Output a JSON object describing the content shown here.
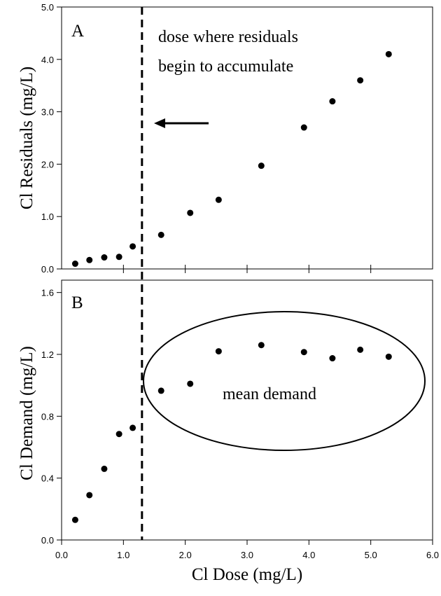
{
  "chart_data": {
    "type": "scatter",
    "x": [
      0.22,
      0.45,
      0.69,
      0.93,
      1.15,
      1.61,
      2.08,
      2.54,
      3.23,
      3.92,
      4.38,
      4.83,
      5.29
    ],
    "xlim": [
      0,
      6
    ],
    "xticks": [
      "0.0",
      "1.0",
      "2.0",
      "3.0",
      "4.0",
      "5.0",
      "6.0"
    ],
    "xlabel": "Cl Dose (mg/L)",
    "panels": [
      {
        "label": "A",
        "ylabel": "Cl Residuals (mg/L)",
        "ylim": [
          0,
          5
        ],
        "yticks": [
          "0.0",
          "1.0",
          "2.0",
          "3.0",
          "4.0",
          "5.0"
        ],
        "y": [
          0.1,
          0.17,
          0.22,
          0.23,
          0.43,
          0.65,
          1.07,
          1.32,
          1.97,
          2.7,
          3.2,
          3.6,
          4.1
        ],
        "annotation": [
          "dose where residuals",
          "begin to accumulate"
        ]
      },
      {
        "label": "B",
        "ylabel": "Cl Demand (mg/L)",
        "ylim": [
          0,
          1.68
        ],
        "yticks": [
          "0.0",
          "0.4",
          "0.8",
          "1.2",
          "1.6"
        ],
        "y": [
          0.13,
          0.29,
          0.46,
          0.685,
          0.725,
          0.965,
          1.01,
          1.22,
          1.26,
          1.215,
          1.175,
          1.23,
          1.185
        ],
        "annotation": "mean demand"
      }
    ],
    "threshold_dose": 1.3
  }
}
